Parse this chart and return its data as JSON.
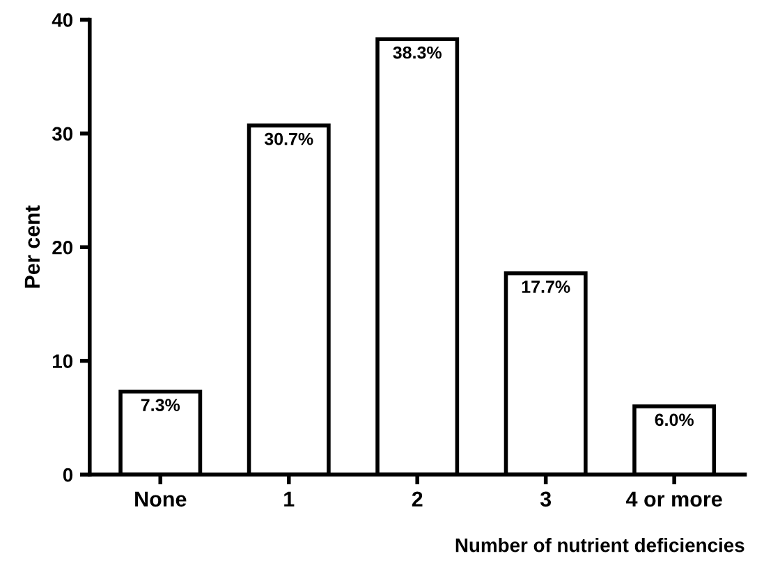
{
  "chart_data": {
    "type": "bar",
    "ylabel": "Per cent",
    "xlabel": "Number of nutrient deficiencies",
    "categories": [
      "None",
      "1",
      "2",
      "3",
      "4 or more"
    ],
    "values": [
      7.3,
      30.7,
      38.3,
      17.7,
      6.0
    ],
    "value_labels": [
      "7.3%",
      "30.7%",
      "38.3%",
      "17.7%",
      "6.0%"
    ],
    "color": "#ffffff",
    "ylim": [
      0,
      40
    ],
    "yticks": [
      0,
      10,
      20,
      30,
      40
    ],
    "grid": false,
    "legend": false
  }
}
